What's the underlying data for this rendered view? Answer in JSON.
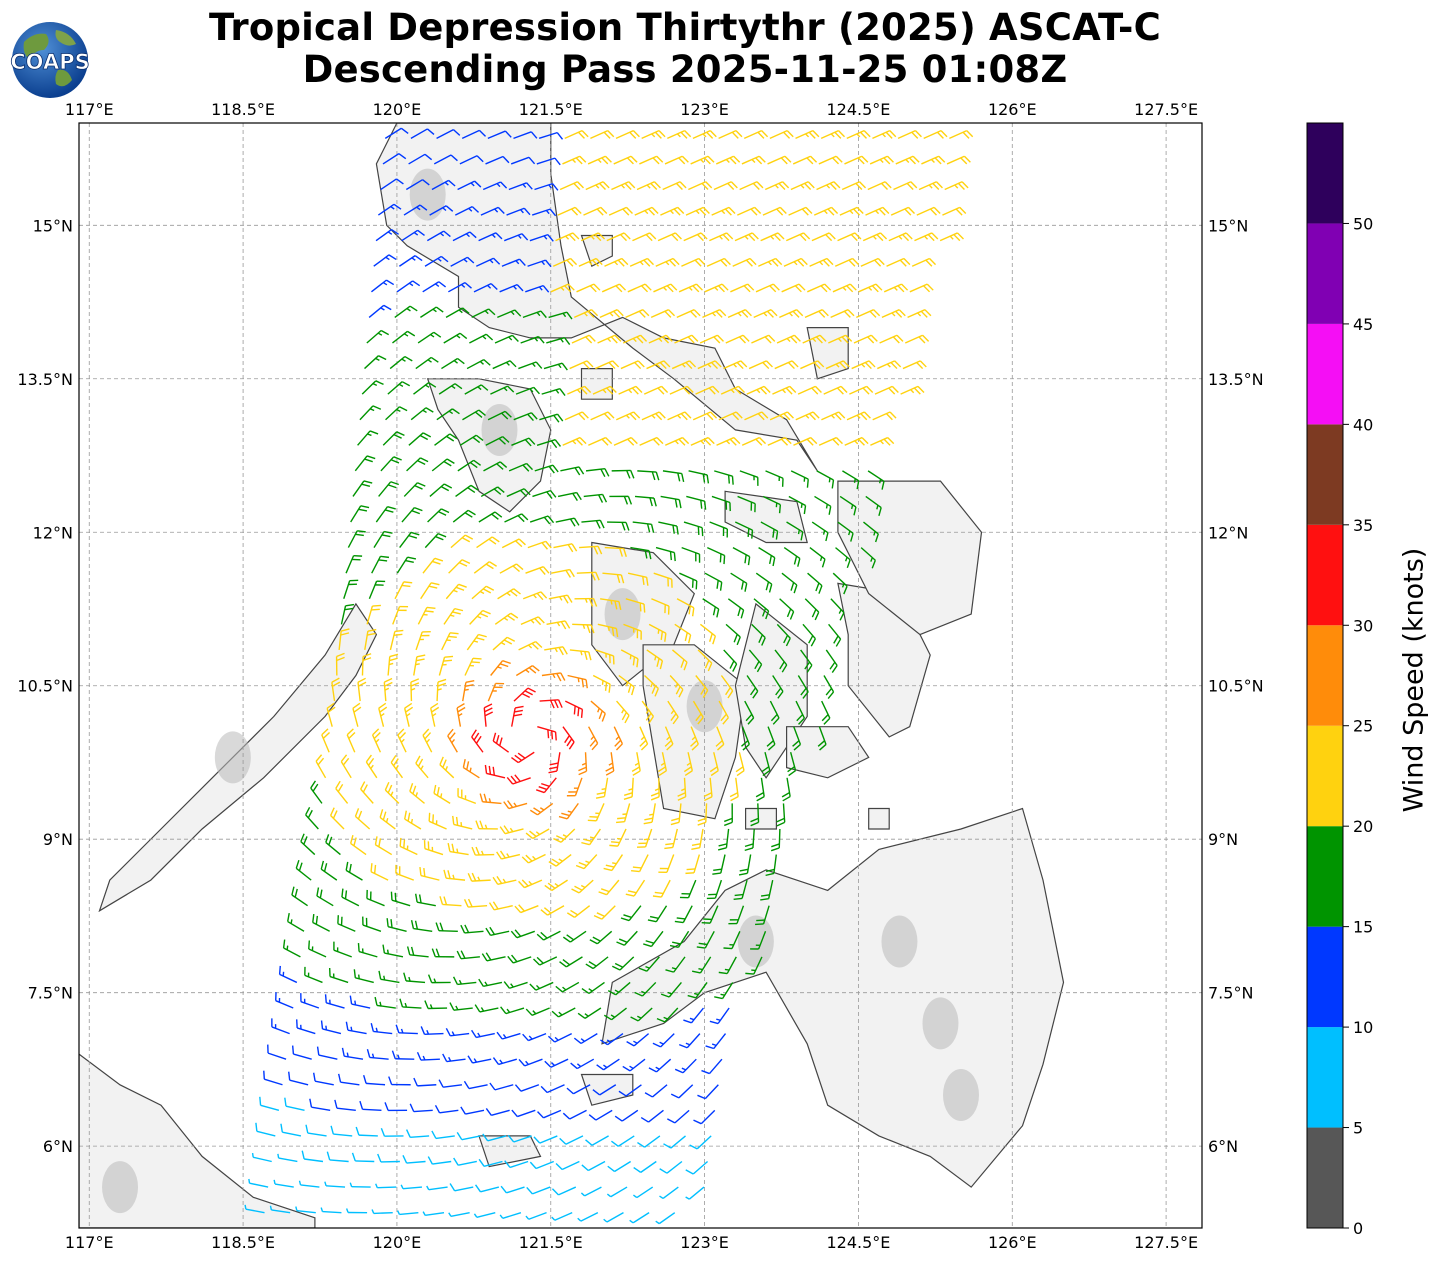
{
  "header": {
    "title_line1": "Tropical Depression Thirtythr (2025) ASCAT-C",
    "title_line2": "Descending Pass 2025-11-25 01:08Z",
    "logo_text": "COAPS"
  },
  "map": {
    "lon_ticks": [
      "117°E",
      "118.5°E",
      "120°E",
      "121.5°E",
      "123°E",
      "124.5°E",
      "126°E",
      "127.5°E"
    ],
    "lat_ticks": [
      "15°N",
      "13.5°N",
      "12°N",
      "10.5°N",
      "9°N",
      "7.5°N",
      "6°N"
    ],
    "extent": {
      "lon_min": 116.9,
      "lon_max": 127.85,
      "lat_min": 5.2,
      "lat_max": 16.0
    },
    "gridlines": true,
    "land_color": "#f2f2f2",
    "coast_color": "#444444"
  },
  "colorbar": {
    "label": "Wind Speed (knots)",
    "tick_labels": [
      "0",
      "5",
      "10",
      "15",
      "20",
      "25",
      "30",
      "35",
      "40",
      "45",
      "50"
    ],
    "bins": [
      {
        "min": 0,
        "max": 5,
        "color": "#575757"
      },
      {
        "min": 5,
        "max": 10,
        "color": "#00bfff"
      },
      {
        "min": 10,
        "max": 15,
        "color": "#0038ff"
      },
      {
        "min": 15,
        "max": 20,
        "color": "#009400"
      },
      {
        "min": 20,
        "max": 25,
        "color": "#ffd20f"
      },
      {
        "min": 25,
        "max": 30,
        "color": "#ff8c0a"
      },
      {
        "min": 30,
        "max": 35,
        "color": "#ff1010"
      },
      {
        "min": 35,
        "max": 40,
        "color": "#7d3a22"
      },
      {
        "min": 40,
        "max": 45,
        "color": "#f50ef5"
      },
      {
        "min": 45,
        "max": 50,
        "color": "#8000b3"
      },
      {
        "min": 50,
        "max": 55,
        "color": "#2e005c"
      }
    ]
  }
}
